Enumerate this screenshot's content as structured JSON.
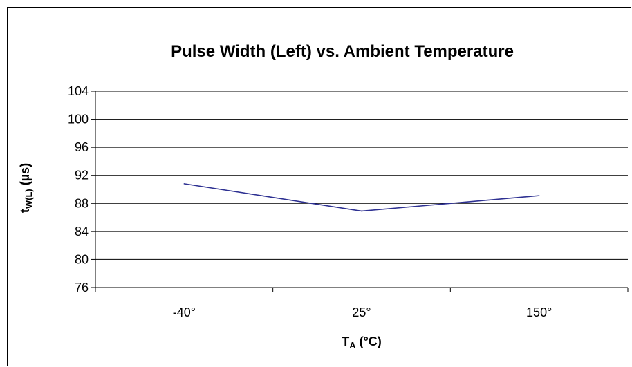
{
  "chart_data": {
    "type": "line",
    "title": "Pulse Width (Left) vs. Ambient Temperature",
    "categories": [
      "-40°",
      "25°",
      "150°"
    ],
    "series": [
      {
        "values": [
          90.8,
          86.9,
          89.1
        ]
      }
    ],
    "ylim": [
      76,
      104
    ],
    "yticks": [
      76,
      80,
      84,
      88,
      92,
      96,
      100,
      104
    ],
    "ylabel": {
      "main": "t",
      "sub": "W(L)",
      "unit": " (µs)"
    },
    "xlabel": {
      "main": "T",
      "sub": "A",
      "unit": " (°C)"
    },
    "grid": true,
    "legend": "none",
    "colors": {
      "line": "#2e3192",
      "grid": "#000000",
      "axis": "#000000"
    }
  }
}
